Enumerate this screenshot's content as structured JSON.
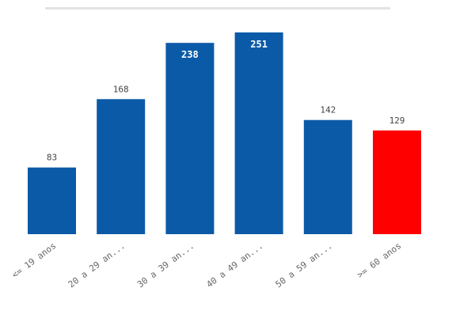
{
  "chart_data": {
    "type": "bar",
    "categories": [
      "<= 19 anos",
      "20 a 29 an...",
      "30 a 39 an...",
      "40 a 49 an...",
      "50 a 59 an...",
      ">= 60 anos"
    ],
    "values": [
      83,
      168,
      238,
      251,
      142,
      129
    ],
    "title": "",
    "xlabel": "",
    "ylabel": "",
    "ylim": [
      0,
      251
    ],
    "grid": false,
    "legend": "none",
    "colors": [
      "#0b5aa8",
      "#0b5aa8",
      "#0b5aa8",
      "#0b5aa8",
      "#0b5aa8",
      "#ff0000"
    ],
    "label_inside": [
      false,
      false,
      true,
      true,
      false,
      false
    ]
  }
}
